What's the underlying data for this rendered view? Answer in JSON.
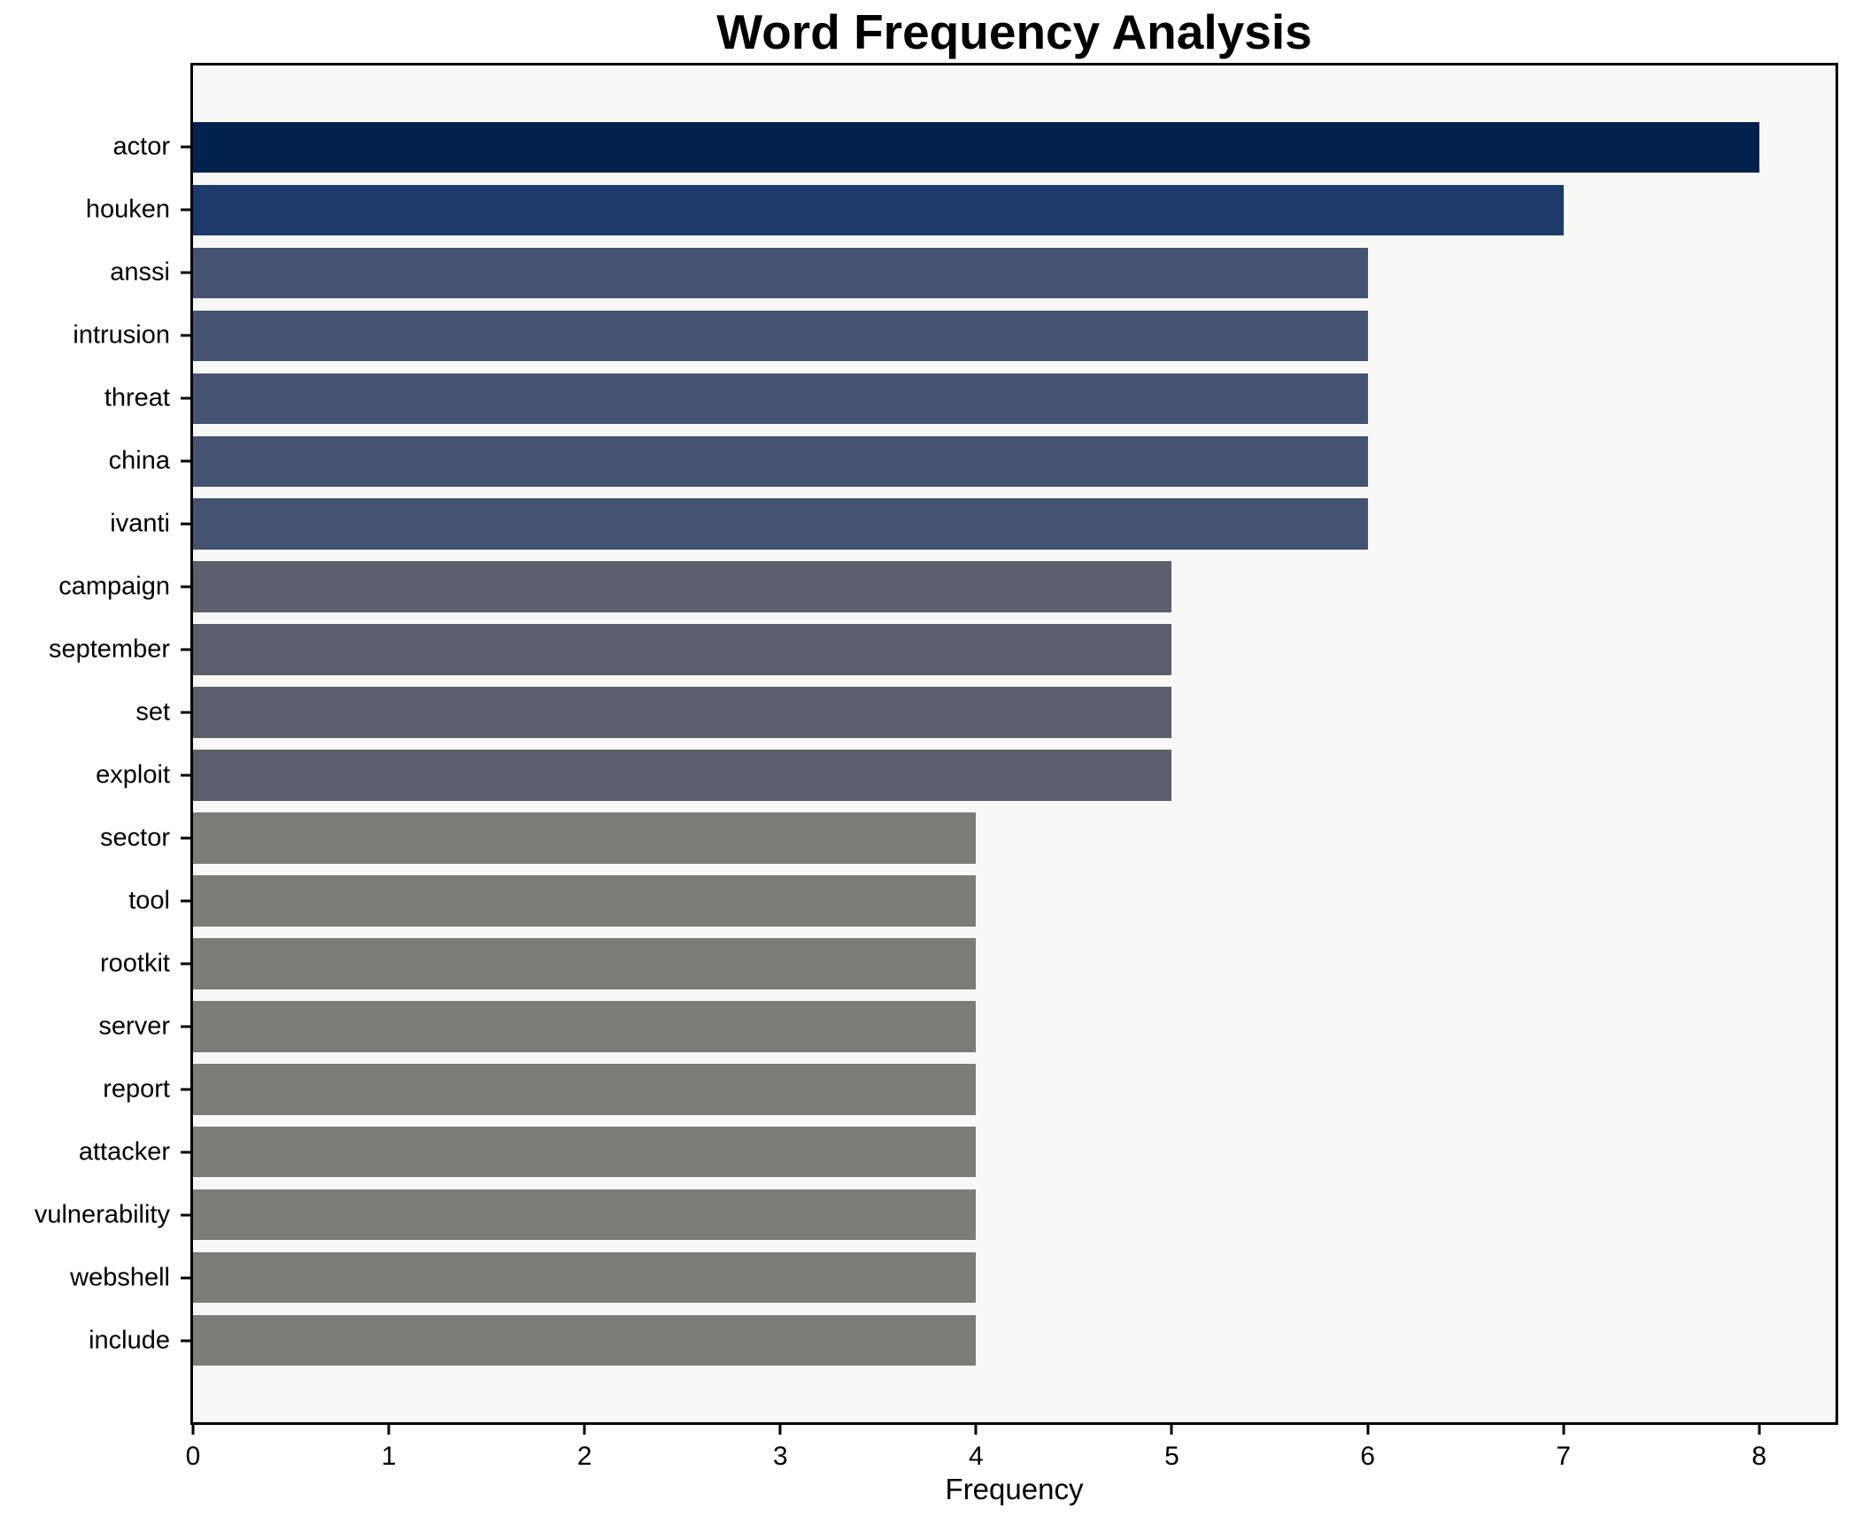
{
  "chart_data": {
    "type": "bar",
    "orientation": "horizontal",
    "title": "Word Frequency Analysis",
    "xlabel": "Frequency",
    "ylabel": "",
    "categories": [
      "actor",
      "houken",
      "anssi",
      "intrusion",
      "threat",
      "china",
      "ivanti",
      "campaign",
      "september",
      "set",
      "exploit",
      "sector",
      "tool",
      "rootkit",
      "server",
      "report",
      "attacker",
      "vulnerability",
      "webshell",
      "include"
    ],
    "values": [
      8,
      7,
      6,
      6,
      6,
      6,
      6,
      5,
      5,
      5,
      5,
      4,
      4,
      4,
      4,
      4,
      4,
      4,
      4,
      4
    ],
    "bar_colors": [
      "#01224d",
      "#1e396b",
      "#455271",
      "#455271",
      "#455271",
      "#455271",
      "#455271",
      "#5c606c",
      "#5c606c",
      "#5c606c",
      "#5c606c",
      "#7b7c76",
      "#7b7c76",
      "#7b7c76",
      "#7b7c76",
      "#7b7c76",
      "#7b7c76",
      "#7b7c76",
      "#7b7c76",
      "#7b7c76"
    ],
    "value_color_map": {
      "8": "#01224d",
      "7": "#1e396b",
      "6": "#455271",
      "5": "#5c606c",
      "4": "#7b7c76"
    },
    "x_ticks": [
      0,
      1,
      2,
      3,
      4,
      5,
      6,
      7,
      8
    ],
    "xlim": [
      0,
      8.39
    ],
    "grid": false,
    "legend_position": "none",
    "plot_bg": "#f8f8f7",
    "figure_bg": "#ffffff",
    "axis_color": "#000000"
  }
}
